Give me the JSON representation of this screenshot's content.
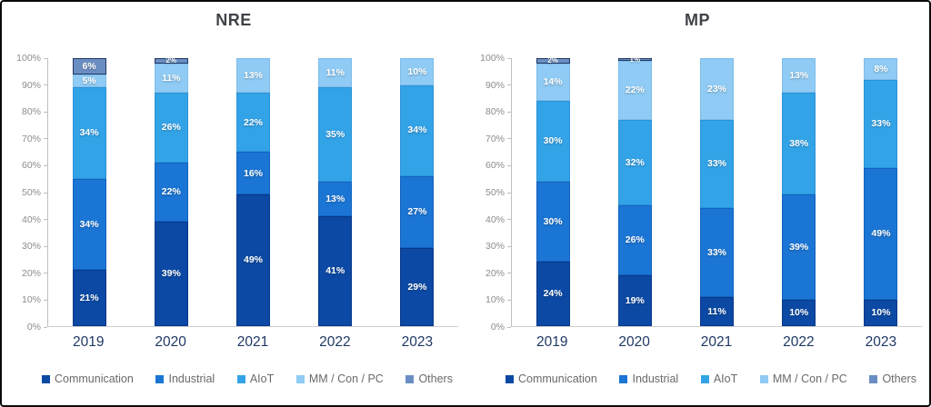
{
  "frame": {
    "background": "#ffffff",
    "border_color": "#0a0a0a"
  },
  "style": {
    "title_color": "#3f4248",
    "axis_tick_color": "#8c8c8c",
    "axis_line_color": "#bfbfbf",
    "category_label_color": "#1F3864",
    "legend_text_color": "#6a6a6a",
    "data_label_color": "#ffffff"
  },
  "series_style": {
    "names": [
      "Communication",
      "Industrial",
      "AIoT",
      "MM / Con / PC",
      "Others"
    ],
    "colors": [
      "#0B49A4",
      "#1B75D4",
      "#33A3E8",
      "#8FCBF4",
      "#6B8EC2"
    ],
    "border_colors": [
      "#08388A",
      "#1263BE",
      "#2B93D8",
      "#7FBCE9",
      "#1F3864"
    ]
  },
  "chart_data": [
    {
      "type": "bar",
      "stacked": true,
      "percent_stacked": true,
      "title": "NRE",
      "categories": [
        "2019",
        "2020",
        "2021",
        "2022",
        "2023"
      ],
      "series": [
        {
          "name": "Communication",
          "values": [
            21,
            39,
            49,
            41,
            29
          ]
        },
        {
          "name": "Industrial",
          "values": [
            34,
            22,
            16,
            13,
            27
          ]
        },
        {
          "name": "AIoT",
          "values": [
            34,
            26,
            22,
            35,
            34
          ]
        },
        {
          "name": "MM / Con / PC",
          "values": [
            5,
            11,
            13,
            11,
            10
          ]
        },
        {
          "name": "Others",
          "values": [
            6,
            2,
            0,
            0,
            0
          ]
        }
      ],
      "y_ticks": [
        "100%",
        "90%",
        "80%",
        "70%",
        "60%",
        "50%",
        "40%",
        "30%",
        "20%",
        "10%",
        "0%"
      ],
      "ylim": [
        0,
        100
      ],
      "grid": false,
      "data_labels": "value-percent",
      "legend": [
        "Communication",
        "Industrial",
        "AIoT",
        "MM / Con / PC",
        "Others"
      ],
      "legend_position": "bottom"
    },
    {
      "type": "bar",
      "stacked": true,
      "percent_stacked": true,
      "title": "MP",
      "categories": [
        "2019",
        "2020",
        "2021",
        "2022",
        "2023"
      ],
      "series": [
        {
          "name": "Communication",
          "values": [
            24,
            19,
            11,
            10,
            10
          ]
        },
        {
          "name": "Industrial",
          "values": [
            30,
            26,
            33,
            39,
            49
          ]
        },
        {
          "name": "AIoT",
          "values": [
            30,
            32,
            33,
            38,
            33
          ]
        },
        {
          "name": "MM / Con / PC",
          "values": [
            14,
            22,
            23,
            13,
            8
          ]
        },
        {
          "name": "Others",
          "values": [
            2,
            1,
            0,
            0,
            0
          ]
        }
      ],
      "y_ticks": [
        "100%",
        "90%",
        "80%",
        "70%",
        "60%",
        "50%",
        "40%",
        "30%",
        "20%",
        "10%",
        "0%"
      ],
      "ylim": [
        0,
        100
      ],
      "grid": false,
      "data_labels": "value-percent",
      "legend": [
        "Communication",
        "Industrial",
        "AIoT",
        "MM / Con / PC",
        "Others"
      ],
      "legend_position": "bottom"
    }
  ]
}
